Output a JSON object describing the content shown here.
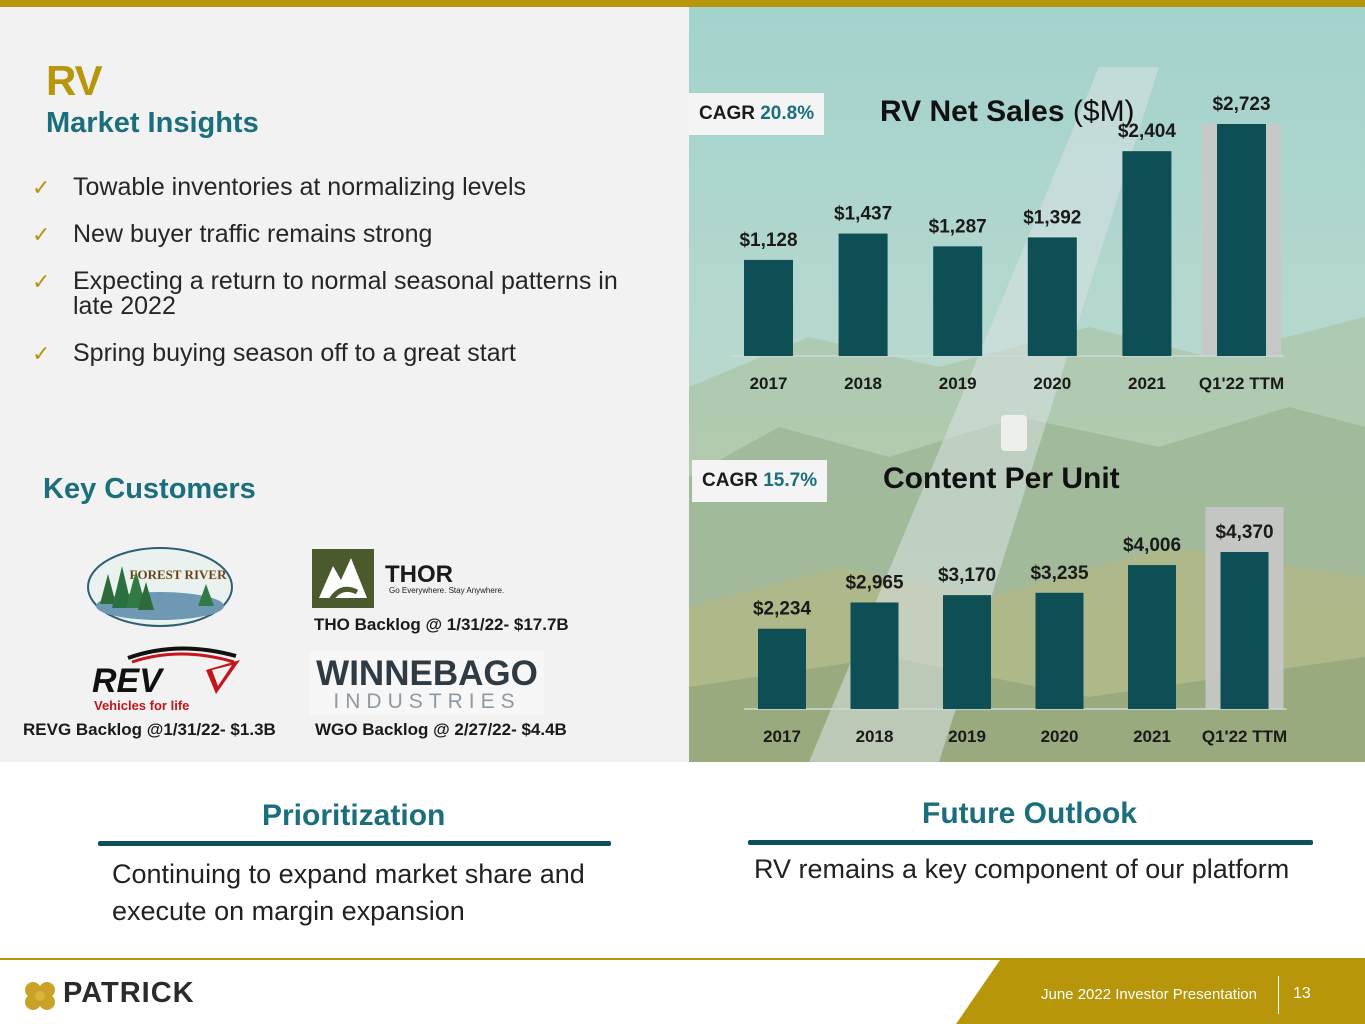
{
  "slide": {
    "title": "RV",
    "subtitle": "Market Insights",
    "insights": [
      "Towable inventories at normalizing levels",
      "New buyer traffic remains strong",
      "Expecting a return to normal seasonal patterns in late 2022",
      "Spring buying season off to a great start"
    ],
    "key_customers_heading": "Key Customers",
    "customers": {
      "forest_river_logo_text": "FOREST RIVER",
      "thor_logo_text": "THOR",
      "thor_tagline": "Go Everywhere. Stay Anywhere.",
      "rev_logo_text": "REV",
      "rev_tagline": "Vehicles for life",
      "winnebago_logo_line1": "WINNEBAGO",
      "winnebago_logo_line2": "INDUSTRIES",
      "tho_backlog": "THO Backlog @ 1/31/22- $17.7B",
      "revg_backlog": "REVG Backlog @1/31/22- $1.3B",
      "wgo_backlog": "WGO Backlog @ 2/27/22- $4.4B"
    },
    "prioritization_heading": "Prioritization",
    "prioritization_text": "Continuing to expand market share and execute on margin expansion",
    "future_heading": "Future Outlook",
    "future_text": "RV remains a key component of our platform"
  },
  "footer": {
    "brand": "PATRICK",
    "label": "June 2022 Investor Presentation",
    "page": "13"
  },
  "colors": {
    "gold": "#b8960c",
    "teal_text": "#1b6f7c",
    "bar": "#0d4f55",
    "highlight": "#c8c8c8"
  },
  "chart_data": [
    {
      "type": "bar",
      "title": "RV Net Sales",
      "title_unit": "($M)",
      "cagr_label": "CAGR",
      "cagr_value": "20.8%",
      "categories": [
        "2017",
        "2018",
        "2019",
        "2020",
        "2021",
        "Q1'22 TTM"
      ],
      "values": [
        1128,
        1437,
        1287,
        1392,
        2404,
        2723
      ],
      "value_labels": [
        "$1,128",
        "$1,437",
        "$1,287",
        "$1,392",
        "$2,404",
        "$2,723"
      ],
      "highlight_index": 5,
      "ylim": [
        0,
        2800
      ]
    },
    {
      "type": "bar",
      "title": "Content Per Unit",
      "cagr_label": "CAGR",
      "cagr_value": "15.7%",
      "categories": [
        "2017",
        "2018",
        "2019",
        "2020",
        "2021",
        "Q1'22 TTM"
      ],
      "values": [
        2234,
        2965,
        3170,
        3235,
        4006,
        4370
      ],
      "value_labels": [
        "$2,234",
        "$2,965",
        "$3,170",
        "$3,235",
        "$4,006",
        "$4,370"
      ],
      "highlight_index": 5,
      "ylim": [
        0,
        4500
      ]
    }
  ]
}
